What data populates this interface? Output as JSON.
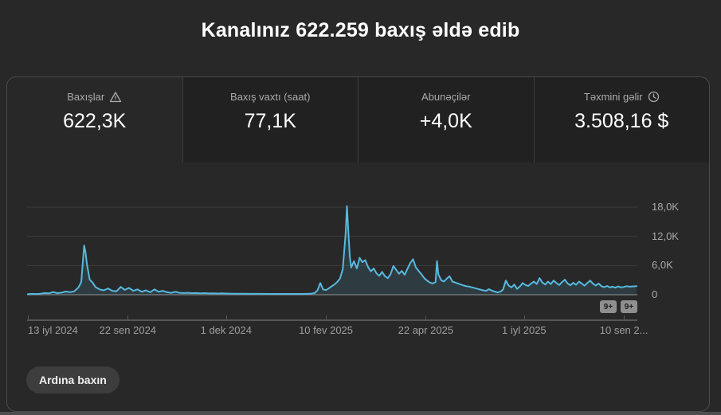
{
  "header": {
    "title": "Kanalınız 622.259 baxış əldə edib"
  },
  "tabs": [
    {
      "label": "Baxışlar",
      "value": "622,3K",
      "icon": "warning-icon",
      "selected": true
    },
    {
      "label": "Baxış vaxtı (saat)",
      "value": "77,1K",
      "selected": false
    },
    {
      "label": "Abunəçilər",
      "value": "+4,0K",
      "selected": false
    },
    {
      "label": "Təxmini gəlir",
      "value": "3.508,16 $",
      "icon": "clock-icon",
      "selected": false
    }
  ],
  "footer": {
    "see_more_label": "Ardına baxın"
  },
  "colors": {
    "page_bg": "#282828",
    "tab_unselected_bg": "#212121",
    "card_border": "#4a4a4a",
    "line": "#57b9df",
    "area": "rgba(87,185,223,0.14)",
    "grid": "#3c3c3c",
    "zero_line": "#717171",
    "muted_text": "#aaaaaa",
    "badge_bg": "#8f8f8f"
  },
  "chart_data": {
    "type": "area",
    "title": "Baxışlar (daily views)",
    "legend": "none",
    "grid": "horizontal",
    "x_axis": {
      "tick_labels": [
        "13 iyl 2024",
        "22 sen 2024",
        "1 dek 2024",
        "10 fev 2025",
        "22 apr 2025",
        "1 iyl 2025",
        "10 sen 2..."
      ],
      "tick_days": [
        0,
        71,
        141,
        212,
        283,
        353,
        424
      ],
      "domain_days": [
        0,
        433
      ]
    },
    "y_axis": {
      "tick_labels": [
        "18,0K",
        "12,0K",
        "6,0K",
        "0"
      ],
      "tick_values": [
        18000,
        12000,
        6000,
        0
      ],
      "range": [
        0,
        18000
      ]
    },
    "annotations": {
      "badges": [
        "9+",
        "9+"
      ]
    },
    "series": [
      {
        "name": "Baxışlar",
        "points": [
          [
            0,
            120
          ],
          [
            3,
            180
          ],
          [
            6,
            150
          ],
          [
            9,
            220
          ],
          [
            12,
            340
          ],
          [
            15,
            280
          ],
          [
            18,
            550
          ],
          [
            21,
            320
          ],
          [
            24,
            420
          ],
          [
            27,
            650
          ],
          [
            30,
            520
          ],
          [
            33,
            700
          ],
          [
            36,
            1500
          ],
          [
            38,
            2600
          ],
          [
            40,
            10100
          ],
          [
            41,
            8800
          ],
          [
            42,
            6300
          ],
          [
            44,
            3100
          ],
          [
            46,
            2500
          ],
          [
            48,
            1600
          ],
          [
            51,
            1100
          ],
          [
            54,
            900
          ],
          [
            57,
            1300
          ],
          [
            60,
            800
          ],
          [
            63,
            700
          ],
          [
            66,
            1600
          ],
          [
            69,
            1000
          ],
          [
            72,
            1400
          ],
          [
            75,
            800
          ],
          [
            78,
            1100
          ],
          [
            81,
            600
          ],
          [
            84,
            900
          ],
          [
            87,
            500
          ],
          [
            90,
            1100
          ],
          [
            93,
            600
          ],
          [
            96,
            800
          ],
          [
            99,
            500
          ],
          [
            102,
            400
          ],
          [
            105,
            600
          ],
          [
            108,
            400
          ],
          [
            111,
            350
          ],
          [
            114,
            400
          ],
          [
            117,
            320
          ],
          [
            120,
            350
          ],
          [
            123,
            280
          ],
          [
            126,
            320
          ],
          [
            129,
            260
          ],
          [
            132,
            300
          ],
          [
            135,
            250
          ],
          [
            138,
            280
          ],
          [
            141,
            240
          ],
          [
            147,
            200
          ],
          [
            153,
            190
          ],
          [
            159,
            180
          ],
          [
            165,
            180
          ],
          [
            171,
            170
          ],
          [
            177,
            170
          ],
          [
            183,
            160
          ],
          [
            189,
            160
          ],
          [
            195,
            160
          ],
          [
            201,
            200
          ],
          [
            204,
            350
          ],
          [
            206,
            900
          ],
          [
            208,
            2400
          ],
          [
            210,
            1100
          ],
          [
            212,
            950
          ],
          [
            214,
            1300
          ],
          [
            216,
            1700
          ],
          [
            218,
            2100
          ],
          [
            220,
            2600
          ],
          [
            222,
            3300
          ],
          [
            224,
            5200
          ],
          [
            226,
            12500
          ],
          [
            227,
            18200
          ],
          [
            228,
            12800
          ],
          [
            229,
            7800
          ],
          [
            230,
            5600
          ],
          [
            232,
            6900
          ],
          [
            234,
            5400
          ],
          [
            236,
            7600
          ],
          [
            238,
            6700
          ],
          [
            240,
            7100
          ],
          [
            242,
            5700
          ],
          [
            244,
            4800
          ],
          [
            246,
            5400
          ],
          [
            248,
            4400
          ],
          [
            250,
            3900
          ],
          [
            252,
            4700
          ],
          [
            254,
            3800
          ],
          [
            256,
            3400
          ],
          [
            258,
            4200
          ],
          [
            260,
            5900
          ],
          [
            262,
            5100
          ],
          [
            264,
            4300
          ],
          [
            266,
            4900
          ],
          [
            268,
            4100
          ],
          [
            270,
            5300
          ],
          [
            272,
            6500
          ],
          [
            274,
            7300
          ],
          [
            276,
            5600
          ],
          [
            278,
            4900
          ],
          [
            280,
            4200
          ],
          [
            282,
            3400
          ],
          [
            284,
            2900
          ],
          [
            286,
            2500
          ],
          [
            288,
            2300
          ],
          [
            290,
            2600
          ],
          [
            291,
            6900
          ],
          [
            292,
            4200
          ],
          [
            294,
            3000
          ],
          [
            296,
            2700
          ],
          [
            298,
            3300
          ],
          [
            300,
            3800
          ],
          [
            302,
            2700
          ],
          [
            304,
            2500
          ],
          [
            306,
            2300
          ],
          [
            308,
            2100
          ],
          [
            310,
            1900
          ],
          [
            312,
            1750
          ],
          [
            314,
            1650
          ],
          [
            316,
            1500
          ],
          [
            318,
            1350
          ],
          [
            320,
            1200
          ],
          [
            322,
            1050
          ],
          [
            324,
            900
          ],
          [
            326,
            800
          ],
          [
            328,
            1150
          ],
          [
            330,
            850
          ],
          [
            332,
            650
          ],
          [
            334,
            480
          ],
          [
            336,
            600
          ],
          [
            338,
            1050
          ],
          [
            340,
            2900
          ],
          [
            342,
            1900
          ],
          [
            344,
            1500
          ],
          [
            346,
            2100
          ],
          [
            348,
            1200
          ],
          [
            350,
            1700
          ],
          [
            352,
            2400
          ],
          [
            354,
            2000
          ],
          [
            356,
            1800
          ],
          [
            358,
            2300
          ],
          [
            360,
            2700
          ],
          [
            362,
            2200
          ],
          [
            364,
            3400
          ],
          [
            366,
            2500
          ],
          [
            368,
            2100
          ],
          [
            370,
            2700
          ],
          [
            372,
            2200
          ],
          [
            374,
            2900
          ],
          [
            376,
            2400
          ],
          [
            378,
            2000
          ],
          [
            380,
            2600
          ],
          [
            382,
            3100
          ],
          [
            384,
            2300
          ],
          [
            386,
            1950
          ],
          [
            388,
            2450
          ],
          [
            390,
            2050
          ],
          [
            392,
            2700
          ],
          [
            394,
            2300
          ],
          [
            396,
            1850
          ],
          [
            398,
            2400
          ],
          [
            400,
            2900
          ],
          [
            402,
            2250
          ],
          [
            404,
            1900
          ],
          [
            406,
            2300
          ],
          [
            408,
            1750
          ],
          [
            410,
            1550
          ],
          [
            412,
            1800
          ],
          [
            414,
            1500
          ],
          [
            416,
            1650
          ],
          [
            418,
            1450
          ],
          [
            420,
            1700
          ],
          [
            422,
            1500
          ],
          [
            424,
            1600
          ],
          [
            426,
            1750
          ],
          [
            428,
            1650
          ],
          [
            430,
            1700
          ],
          [
            433,
            1750
          ]
        ]
      }
    ]
  }
}
